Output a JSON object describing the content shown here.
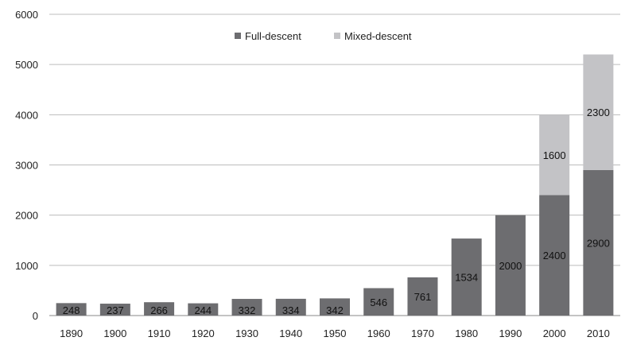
{
  "chart_data": {
    "type": "bar",
    "stacked": true,
    "categories": [
      "1890",
      "1900",
      "1910",
      "1920",
      "1930",
      "1940",
      "1950",
      "1960",
      "1970",
      "1980",
      "1990",
      "2000",
      "2010"
    ],
    "series": [
      {
        "name": "Full-descent",
        "color": "#6d6d70",
        "values": [
          248,
          237,
          266,
          244,
          332,
          334,
          342,
          546,
          761,
          1534,
          2000,
          2400,
          2900
        ],
        "labels": [
          "248",
          "237",
          "266",
          "244",
          "332",
          "334",
          "342",
          "546",
          "761",
          "1534",
          "2000",
          "2400",
          "2900"
        ]
      },
      {
        "name": "Mixed-descent",
        "color": "#c3c3c6",
        "values": [
          0,
          0,
          0,
          0,
          0,
          0,
          0,
          0,
          0,
          0,
          0,
          1600,
          2300
        ],
        "labels": [
          "",
          "",
          "",
          "",
          "",
          "",
          "",
          "",
          "",
          "",
          "",
          "1600",
          "2300"
        ]
      }
    ],
    "title": "",
    "xlabel": "",
    "ylabel": "",
    "ylim": [
      0,
      6000
    ],
    "yticks": [
      0,
      1000,
      2000,
      3000,
      4000,
      5000,
      6000
    ],
    "grid": true,
    "legend_position": "top-center"
  }
}
